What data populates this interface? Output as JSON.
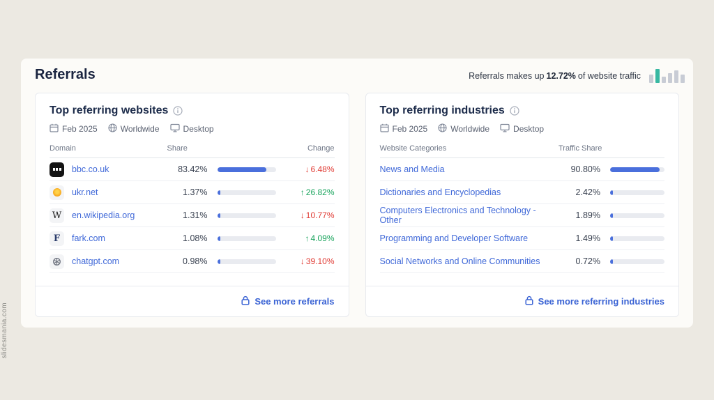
{
  "watermark": "slidesmania.com",
  "header": {
    "title": "Referrals",
    "summary_prefix": "Referrals makes up",
    "summary_value": "12.72%",
    "summary_suffix": "of website traffic"
  },
  "colors": {
    "accent_blue": "#4a6fdc",
    "link_blue": "#3f68d8",
    "down_red": "#e03a33",
    "up_green": "#17a35b",
    "teal_bar": "#38b8a2",
    "background": "#ece9e2"
  },
  "icons": {
    "wikipedia_glyph": "W",
    "fark_glyph": "F"
  },
  "websites": {
    "title": "Top referring websites",
    "filters": {
      "date": "Feb 2025",
      "region": "Worldwide",
      "device": "Desktop"
    },
    "columns": {
      "domain": "Domain",
      "share": "Share",
      "change": "Change"
    },
    "rows": [
      {
        "domain": "bbc.co.uk",
        "share": "83.42%",
        "share_pct": 83.42,
        "arrow": "↓",
        "change": "6.48%",
        "direction": "down"
      },
      {
        "domain": "ukr.net",
        "share": "1.37%",
        "share_pct": 1.37,
        "arrow": "↑",
        "change": "26.82%",
        "direction": "up"
      },
      {
        "domain": "en.wikipedia.org",
        "share": "1.31%",
        "share_pct": 1.31,
        "arrow": "↓",
        "change": "10.77%",
        "direction": "down"
      },
      {
        "domain": "fark.com",
        "share": "1.08%",
        "share_pct": 1.08,
        "arrow": "↑",
        "change": "4.09%",
        "direction": "up"
      },
      {
        "domain": "chatgpt.com",
        "share": "0.98%",
        "share_pct": 0.98,
        "arrow": "↓",
        "change": "39.10%",
        "direction": "down"
      }
    ],
    "footer_link": "See more referrals"
  },
  "industries": {
    "title": "Top referring industries",
    "filters": {
      "date": "Feb 2025",
      "region": "Worldwide",
      "device": "Desktop"
    },
    "columns": {
      "category": "Website Categories",
      "share": "Traffic Share"
    },
    "rows": [
      {
        "category": "News and Media",
        "share": "90.80%",
        "share_pct": 90.8
      },
      {
        "category": "Dictionaries and Encyclopedias",
        "share": "2.42%",
        "share_pct": 2.42
      },
      {
        "category": "Computers Electronics and Technology - Other",
        "share": "1.89%",
        "share_pct": 1.89
      },
      {
        "category": "Programming and Developer Software",
        "share": "1.49%",
        "share_pct": 1.49
      },
      {
        "category": "Social Networks and Online Communities",
        "share": "0.72%",
        "share_pct": 0.72
      }
    ],
    "footer_link": "See more referring industries"
  }
}
